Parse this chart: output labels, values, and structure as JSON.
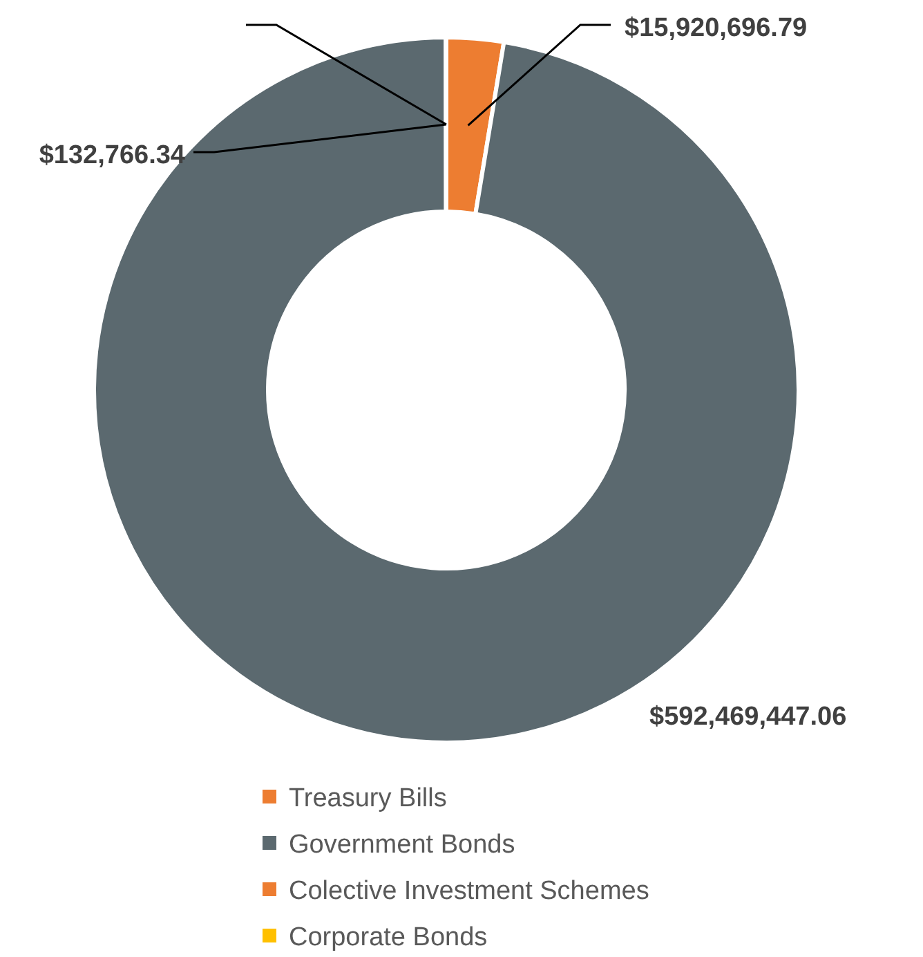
{
  "chart_data": {
    "type": "donut",
    "categories": [
      "Treasury Bills",
      "Government Bonds",
      "Colective Investment Schemes",
      "Corporate Bonds"
    ],
    "values": [
      15920696.79,
      592469447.06,
      132766.34,
      0
    ],
    "colors": [
      "#ed7d31",
      "#5b696f",
      "#ed7d31",
      "#ffc000"
    ],
    "value_labels": [
      "$15,920,696.79",
      "$592,469,447.06",
      "$132,766.34",
      null
    ],
    "legend": "bottom"
  }
}
